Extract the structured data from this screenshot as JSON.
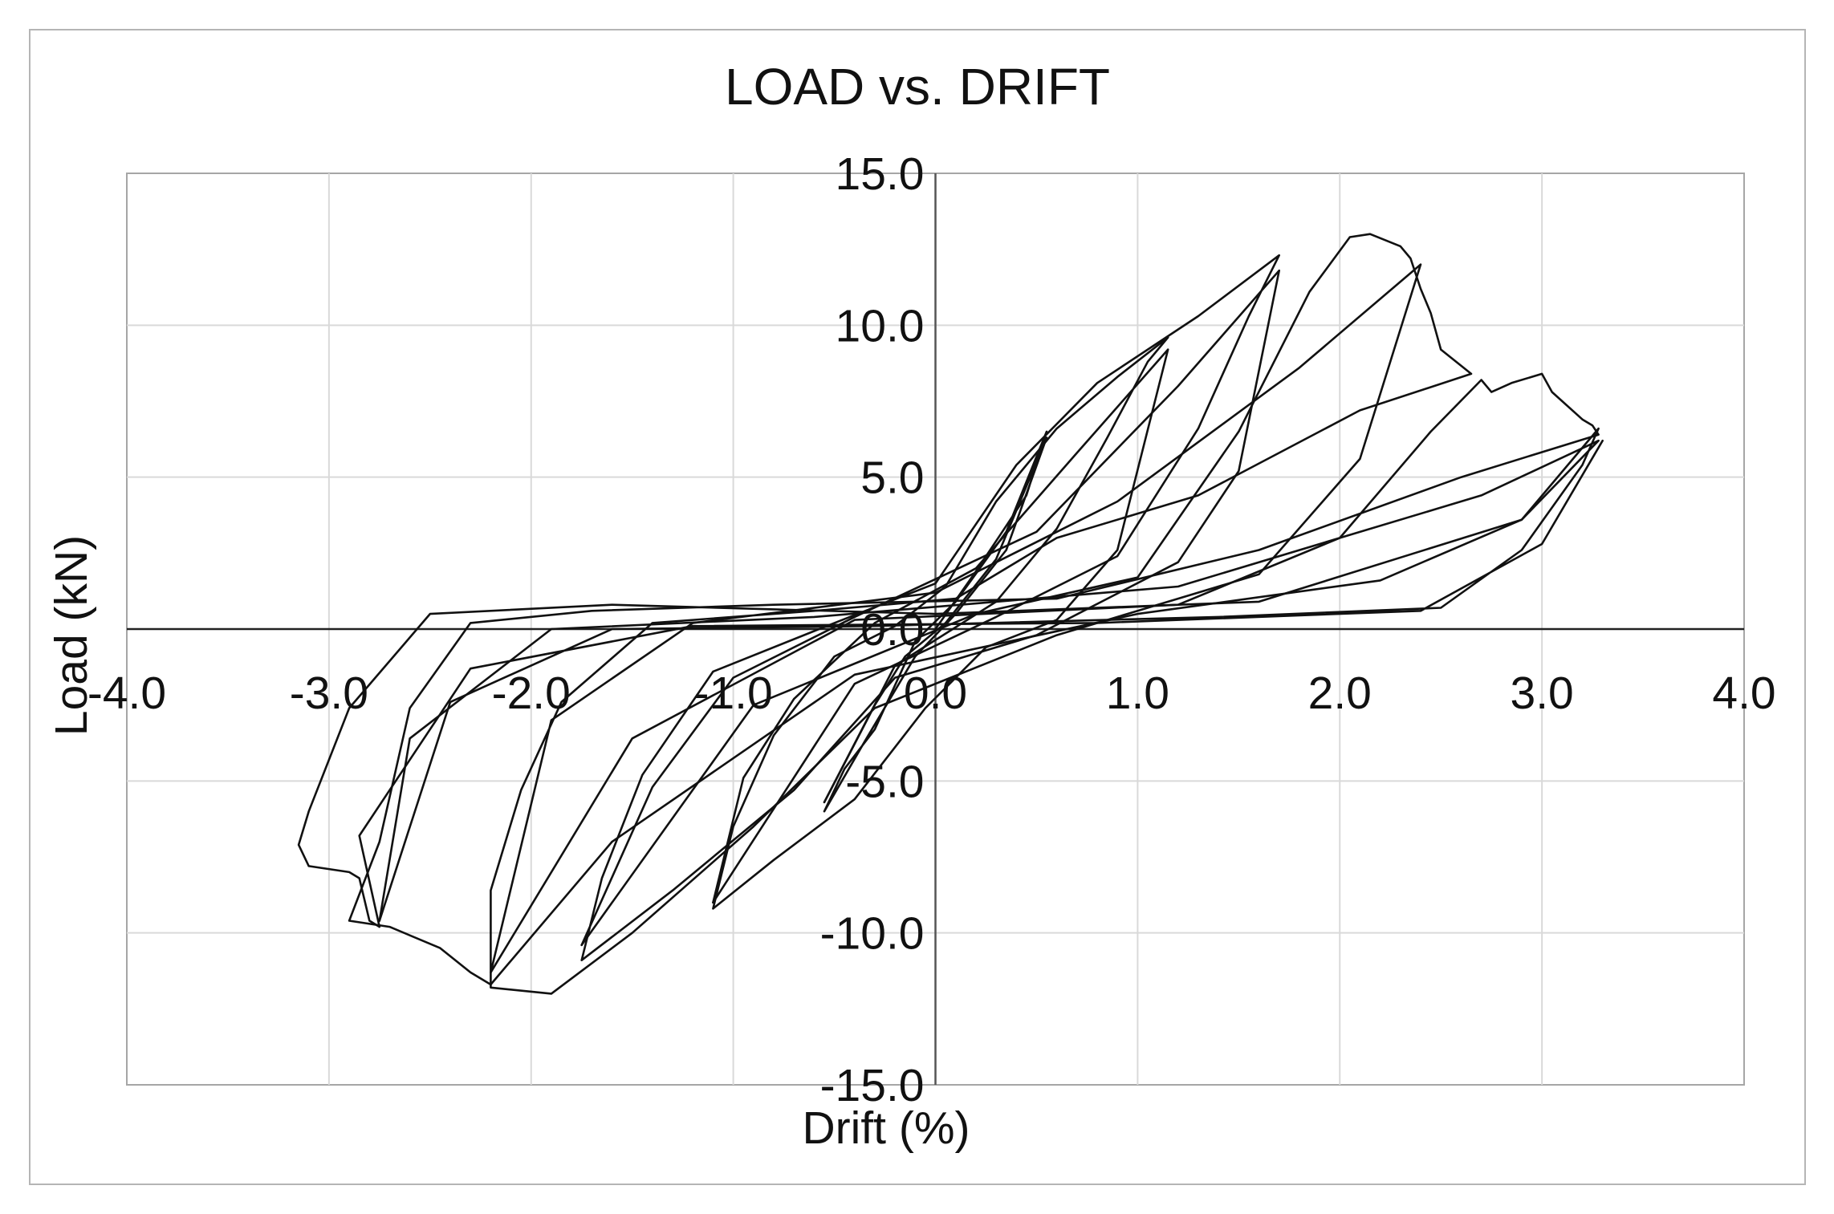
{
  "chart_data": {
    "type": "line",
    "title": "LOAD vs. DRIFT",
    "xlabel": "Drift (%)",
    "ylabel": "Load (kN)",
    "xlim": [
      -4.0,
      4.0
    ],
    "ylim": [
      -15.0,
      15.0
    ],
    "x_ticks": [
      "-4.0",
      "-3.0",
      "-2.0",
      "-1.0",
      "0.0",
      "1.0",
      "2.0",
      "3.0",
      "4.0"
    ],
    "y_ticks": [
      "15.0",
      "10.0",
      "5.0",
      "0.0",
      "-5.0",
      "-10.0",
      "-15.0"
    ],
    "grid": true,
    "legend": "none",
    "line_color": "#111111",
    "grid_color": "#d9d9d9",
    "series": [
      {
        "values": [
          [
            0,
            0
          ],
          [
            0.2,
            1.9
          ],
          [
            0.35,
            3.4
          ],
          [
            0.45,
            4.4
          ],
          [
            0.55,
            6.5
          ],
          [
            0.35,
            3.2
          ],
          [
            0.1,
            0.9
          ],
          [
            -0.1,
            -0.4
          ],
          [
            -0.3,
            -3.3
          ],
          [
            -0.45,
            -4.6
          ],
          [
            -0.55,
            -6.0
          ],
          [
            -0.35,
            -3.7
          ],
          [
            -0.1,
            -0.9
          ],
          [
            0.1,
            0.5
          ],
          [
            0.35,
            2.6
          ],
          [
            0.55,
            6.3
          ],
          [
            0.3,
            2.3
          ],
          [
            0.05,
            0.2
          ],
          [
            -0.15,
            -0.9
          ],
          [
            -0.3,
            -2.5
          ],
          [
            -0.55,
            -5.7
          ]
        ]
      },
      {
        "values": [
          [
            -0.55,
            -5.7
          ],
          [
            -0.2,
            -1.2
          ],
          [
            0.3,
            0.9
          ],
          [
            0.6,
            3.3
          ],
          [
            0.85,
            6.3
          ],
          [
            1.05,
            8.8
          ],
          [
            1.15,
            9.6
          ],
          [
            0.9,
            8.3
          ],
          [
            0.6,
            6.6
          ],
          [
            0.3,
            4.2
          ],
          [
            0.05,
            1.4
          ],
          [
            -0.2,
            0.1
          ],
          [
            -0.5,
            -0.9
          ],
          [
            -0.8,
            -3.5
          ],
          [
            -1.0,
            -6.5
          ],
          [
            -1.1,
            -9.2
          ],
          [
            -0.8,
            -7.6
          ],
          [
            -0.4,
            -5.6
          ],
          [
            -0.05,
            -2.6
          ],
          [
            0.25,
            -0.6
          ],
          [
            0.6,
            0.3
          ],
          [
            0.9,
            2.6
          ],
          [
            1.15,
            9.2
          ],
          [
            0.7,
            5.8
          ],
          [
            0.2,
            2.0
          ],
          [
            -0.3,
            0.2
          ],
          [
            -0.7,
            -2.3
          ],
          [
            -0.95,
            -4.9
          ],
          [
            -1.1,
            -9.0
          ]
        ]
      },
      {
        "values": [
          [
            -1.1,
            -9.0
          ],
          [
            -0.4,
            -1.8
          ],
          [
            0.3,
            0.4
          ],
          [
            0.9,
            2.4
          ],
          [
            1.3,
            6.6
          ],
          [
            1.55,
            10.3
          ],
          [
            1.7,
            12.3
          ],
          [
            1.3,
            10.3
          ],
          [
            0.8,
            8.1
          ],
          [
            0.4,
            5.4
          ],
          [
            0.0,
            1.5
          ],
          [
            -0.5,
            0.2
          ],
          [
            -1.1,
            -1.4
          ],
          [
            -1.45,
            -4.8
          ],
          [
            -1.65,
            -8.2
          ],
          [
            -1.75,
            -10.9
          ],
          [
            -1.3,
            -8.6
          ],
          [
            -0.7,
            -5.3
          ],
          [
            -0.2,
            -1.6
          ],
          [
            0.5,
            -0.2
          ],
          [
            1.2,
            2.2
          ],
          [
            1.5,
            5.2
          ],
          [
            1.7,
            11.8
          ],
          [
            1.2,
            8.0
          ],
          [
            0.5,
            3.2
          ],
          [
            -0.4,
            0.4
          ],
          [
            -1.0,
            -1.6
          ],
          [
            -1.4,
            -5.2
          ],
          [
            -1.75,
            -10.4
          ]
        ]
      },
      {
        "values": [
          [
            -1.75,
            -10.4
          ],
          [
            -0.9,
            -2.5
          ],
          [
            0.2,
            0.5
          ],
          [
            1.0,
            1.7
          ],
          [
            1.5,
            6.5
          ],
          [
            1.85,
            11.1
          ],
          [
            2.05,
            12.9
          ],
          [
            2.15,
            13.0
          ],
          [
            2.3,
            12.6
          ],
          [
            2.35,
            12.2
          ],
          [
            2.4,
            11.2
          ],
          [
            2.45,
            10.4
          ],
          [
            2.5,
            9.2
          ],
          [
            2.65,
            8.4
          ],
          [
            2.1,
            7.2
          ],
          [
            1.3,
            4.4
          ],
          [
            0.6,
            3.0
          ],
          [
            0.1,
            1.0
          ],
          [
            -0.6,
            0.6
          ],
          [
            -1.4,
            0.2
          ],
          [
            -1.85,
            -2.4
          ],
          [
            -2.05,
            -5.3
          ],
          [
            -2.2,
            -8.6
          ],
          [
            -2.2,
            -11.8
          ],
          [
            -1.9,
            -12.0
          ],
          [
            -1.5,
            -10.0
          ],
          [
            -0.9,
            -6.5
          ],
          [
            -0.3,
            -2.6
          ],
          [
            0.6,
            -0.2
          ],
          [
            1.6,
            1.8
          ],
          [
            2.1,
            5.6
          ],
          [
            2.4,
            12.0
          ],
          [
            1.8,
            8.6
          ],
          [
            0.9,
            4.2
          ],
          [
            0.0,
            1.2
          ],
          [
            -1.2,
            0.2
          ],
          [
            -1.9,
            -3.0
          ],
          [
            -2.2,
            -11.3
          ]
        ]
      },
      {
        "values": [
          [
            -2.2,
            -11.3
          ],
          [
            -1.5,
            -3.6
          ],
          [
            -0.4,
            0.3
          ],
          [
            1.2,
            0.8
          ],
          [
            2.0,
            3.0
          ],
          [
            2.45,
            6.5
          ],
          [
            2.7,
            8.2
          ],
          [
            2.75,
            7.8
          ],
          [
            2.85,
            8.1
          ],
          [
            3.0,
            8.4
          ],
          [
            3.05,
            7.8
          ],
          [
            3.2,
            6.9
          ],
          [
            3.25,
            6.7
          ],
          [
            3.28,
            6.4
          ],
          [
            2.6,
            5.0
          ],
          [
            1.6,
            2.6
          ],
          [
            0.6,
            1.0
          ],
          [
            -0.8,
            0.8
          ],
          [
            -1.7,
            0.6
          ],
          [
            -2.3,
            0.2
          ],
          [
            -2.6,
            -2.6
          ],
          [
            -2.75,
            -7.0
          ],
          [
            -2.9,
            -9.6
          ],
          [
            -2.7,
            -9.8
          ],
          [
            -2.45,
            -10.5
          ],
          [
            -2.3,
            -11.3
          ],
          [
            -2.2,
            -11.7
          ],
          [
            -1.6,
            -7.0
          ],
          [
            -0.4,
            -1.5
          ],
          [
            1.0,
            0.5
          ],
          [
            2.2,
            1.6
          ],
          [
            2.9,
            3.6
          ],
          [
            3.28,
            6.2
          ],
          [
            2.7,
            4.4
          ],
          [
            1.2,
            1.4
          ],
          [
            -0.6,
            0.4
          ],
          [
            -1.9,
            0.0
          ],
          [
            -2.6,
            -3.6
          ],
          [
            -2.75,
            -9.6
          ]
        ]
      },
      {
        "values": [
          [
            -2.75,
            -9.6
          ],
          [
            -2.4,
            -2.4
          ],
          [
            -1.6,
            0.0
          ],
          [
            -0.3,
            0.1
          ],
          [
            1.4,
            0.4
          ],
          [
            2.5,
            0.7
          ],
          [
            2.9,
            2.6
          ],
          [
            3.2,
            5.4
          ],
          [
            3.28,
            6.6
          ],
          [
            2.9,
            3.6
          ],
          [
            1.6,
            0.9
          ],
          [
            0.0,
            0.5
          ],
          [
            -1.6,
            0.8
          ],
          [
            -2.5,
            0.5
          ],
          [
            -2.9,
            -2.6
          ],
          [
            -3.1,
            -6.0
          ],
          [
            -3.15,
            -7.1
          ],
          [
            -3.1,
            -7.8
          ],
          [
            -2.9,
            -8.0
          ],
          [
            -2.85,
            -8.2
          ],
          [
            -2.8,
            -9.6
          ],
          [
            -2.75,
            -9.8
          ],
          [
            -2.85,
            -6.8
          ],
          [
            -2.3,
            -1.3
          ],
          [
            -1.2,
            0.1
          ],
          [
            0.8,
            0.2
          ],
          [
            2.4,
            0.6
          ],
          [
            3.0,
            2.8
          ],
          [
            3.3,
            6.2
          ]
        ]
      }
    ]
  }
}
